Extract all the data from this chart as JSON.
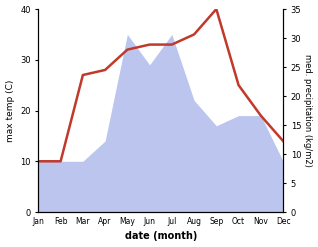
{
  "months": [
    "Jan",
    "Feb",
    "Mar",
    "Apr",
    "May",
    "Jun",
    "Jul",
    "Aug",
    "Sep",
    "Oct",
    "Nov",
    "Dec"
  ],
  "temperature": [
    10,
    10,
    27,
    28,
    32,
    33,
    33,
    35,
    40,
    25,
    19,
    14
  ],
  "rainfall_left": [
    10,
    10,
    10,
    14,
    35,
    29,
    35,
    22,
    17,
    19,
    19,
    10
  ],
  "temp_color": "#c0392b",
  "rain_color": "#bbc5ee",
  "xlabel": "date (month)",
  "ylabel_left": "max temp (C)",
  "ylabel_right": "med. precipitation (kg/m2)",
  "ylim_left": [
    0,
    40
  ],
  "ylim_right": [
    0,
    35
  ],
  "yticks_left": [
    0,
    10,
    20,
    30,
    40
  ],
  "yticks_right": [
    0,
    5,
    10,
    15,
    20,
    25,
    30,
    35
  ],
  "temp_linewidth": 1.8,
  "bg_color": "#ffffff"
}
